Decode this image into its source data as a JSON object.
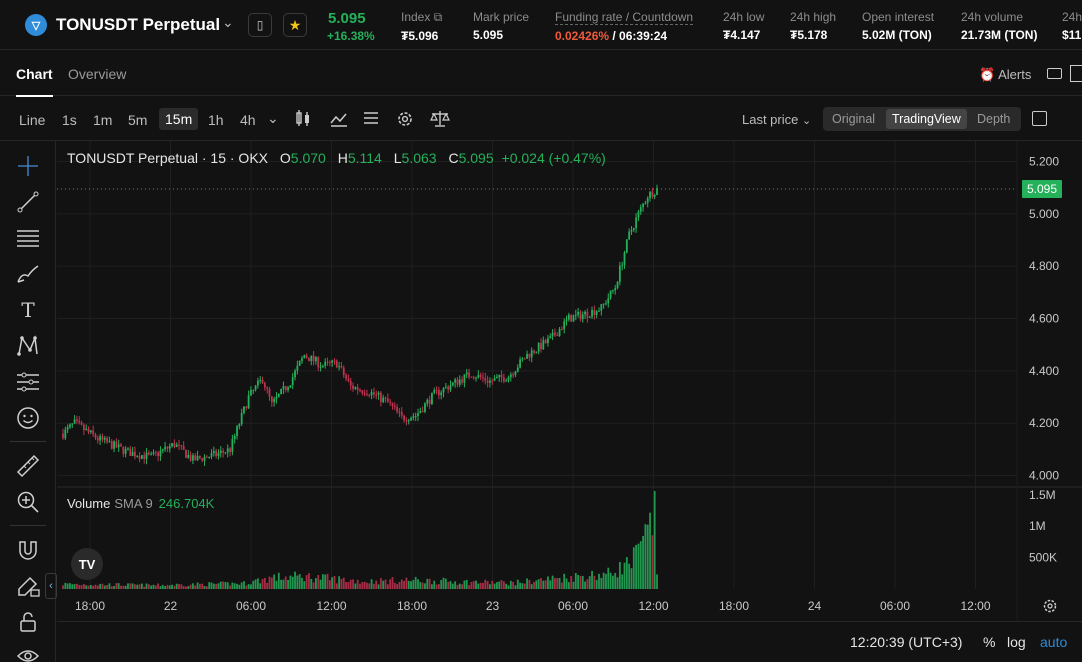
{
  "header": {
    "symbol": "TONUSDT Perpetual",
    "logo_glyph": "▽",
    "last_price": "5.095",
    "change_pct": "+16.38%",
    "stats": [
      {
        "label": "Index",
        "value": "₮5.096"
      },
      {
        "label": "Mark price",
        "value": "5.095"
      },
      {
        "label": "Funding rate / Countdown",
        "rate": "0.02426%",
        "countdown": "/ 06:39:24"
      },
      {
        "label": "24h low",
        "value": "₮4.147"
      },
      {
        "label": "24h high",
        "value": "₮5.178"
      },
      {
        "label": "Open interest",
        "value": "5.02M (TON)"
      },
      {
        "label": "24h volume",
        "value": "21.73M (TON)"
      },
      {
        "label": "24h",
        "value": "$11"
      }
    ]
  },
  "tabs": [
    {
      "label": "Chart"
    },
    {
      "label": "Overview"
    }
  ],
  "alerts_label": "Alerts",
  "toolbar": {
    "line_label": "Line",
    "intervals": [
      "1s",
      "1m",
      "5m",
      "15m",
      "1h",
      "4h"
    ],
    "price_source": "Last price",
    "views": [
      "Original",
      "TradingView",
      "Depth"
    ]
  },
  "legend": {
    "title": "TONUSDT Perpetual · 15 · OKX",
    "o_label": "O",
    "o": "5.070",
    "h_label": "H",
    "h": "5.114",
    "l_label": "L",
    "l": "5.063",
    "c_label": "C",
    "c": "5.095",
    "change": "+0.024 (+0.47%)"
  },
  "volume_legend": {
    "label": "Volume",
    "ma": "SMA 9",
    "value": "246.704K"
  },
  "tv_logo": "TV",
  "bottom": {
    "time": "12:20:39 (UTC+3)",
    "pct": "%",
    "log": "log",
    "auto": "auto"
  },
  "colors": {
    "up": "#25b05a",
    "down": "#c0324f",
    "background": "#121212",
    "accent": "#2f8cd9"
  },
  "chart_data": {
    "type": "candlestick",
    "price_axis_labels": [
      "5.200",
      "5.000",
      "4.800",
      "4.600",
      "4.400",
      "4.200",
      "4.000"
    ],
    "price_axis_values": [
      5.2,
      5.0,
      4.8,
      4.6,
      4.4,
      4.2,
      4.0
    ],
    "ylim": [
      3.96,
      5.24
    ],
    "last_price_marker": "5.095",
    "last_price_value": 5.095,
    "volume_axis_labels": [
      "1.5M",
      "1M",
      "500K"
    ],
    "volume_axis_values": [
      1500000,
      1000000,
      500000
    ],
    "volume_max": 1560000,
    "time_axis_labels": [
      "18:00",
      "22",
      "06:00",
      "12:00",
      "18:00",
      "23",
      "06:00",
      "12:00",
      "18:00",
      "24",
      "06:00",
      "12:00"
    ],
    "close_anchors": [
      [
        0,
        4.16
      ],
      [
        5,
        4.2
      ],
      [
        15,
        4.14
      ],
      [
        28,
        4.09
      ],
      [
        38,
        4.07
      ],
      [
        48,
        4.12
      ],
      [
        56,
        4.06
      ],
      [
        66,
        4.08
      ],
      [
        72,
        4.1
      ],
      [
        80,
        4.3
      ],
      [
        86,
        4.37
      ],
      [
        90,
        4.27
      ],
      [
        98,
        4.36
      ],
      [
        104,
        4.46
      ],
      [
        112,
        4.42
      ],
      [
        118,
        4.43
      ],
      [
        124,
        4.34
      ],
      [
        132,
        4.32
      ],
      [
        140,
        4.28
      ],
      [
        146,
        4.22
      ],
      [
        152,
        4.23
      ],
      [
        160,
        4.31
      ],
      [
        168,
        4.35
      ],
      [
        176,
        4.39
      ],
      [
        184,
        4.36
      ],
      [
        192,
        4.38
      ],
      [
        200,
        4.46
      ],
      [
        210,
        4.52
      ],
      [
        218,
        4.6
      ],
      [
        226,
        4.62
      ],
      [
        232,
        4.64
      ],
      [
        238,
        4.72
      ],
      [
        244,
        4.92
      ],
      [
        248,
        5.0
      ],
      [
        252,
        5.07
      ],
      [
        256,
        5.095
      ]
    ],
    "volume_anchors": [
      [
        0,
        80
      ],
      [
        40,
        60
      ],
      [
        78,
        90
      ],
      [
        90,
        180
      ],
      [
        104,
        200
      ],
      [
        130,
        120
      ],
      [
        150,
        140
      ],
      [
        175,
        110
      ],
      [
        195,
        100
      ],
      [
        215,
        180
      ],
      [
        235,
        240
      ],
      [
        245,
        420
      ],
      [
        250,
        700
      ],
      [
        253,
        950
      ],
      [
        255,
        1450
      ],
      [
        256,
        250
      ]
    ]
  },
  "tools": [
    "crosshair",
    "trend-line",
    "horizontal-lines",
    "brush",
    "text",
    "pattern",
    "fib",
    "emoji",
    "ruler",
    "zoom",
    "magnet",
    "lock-draw",
    "lock",
    "eye"
  ]
}
